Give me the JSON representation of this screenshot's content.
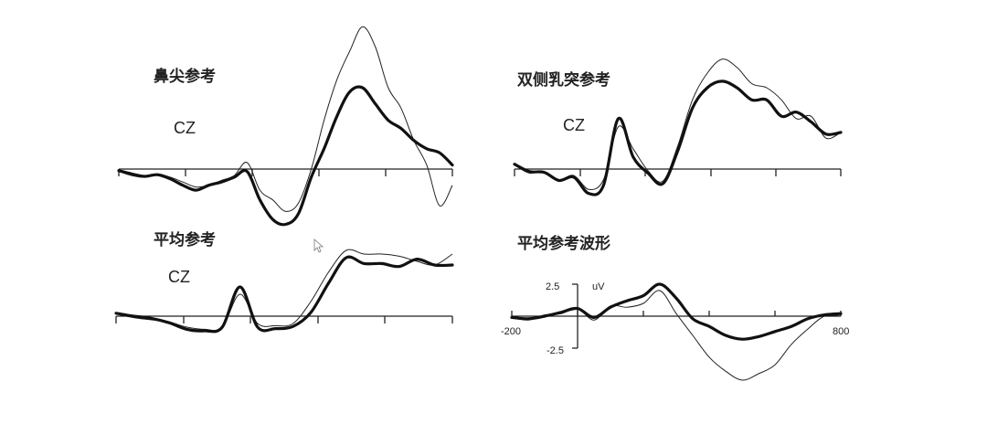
{
  "chart_data": [
    {
      "type": "line",
      "title": "鼻尖参考",
      "channel": "CZ",
      "series": [
        {
          "style": "thin",
          "values": [
            -0.3,
            -0.8,
            -1.0,
            -0.6,
            -1.0,
            -1.6,
            -2.2,
            -2.0,
            -1.4,
            -0.8,
            0.8,
            -2.6,
            -3.8,
            -5.2,
            -4.2,
            0.0,
            6.0,
            11.0,
            14.5,
            17.5,
            15.0,
            10.0,
            7.5,
            3.5,
            0.5,
            -4.5,
            -2.0
          ]
        },
        {
          "style": "thick",
          "values": [
            -0.2,
            -0.6,
            -0.9,
            -0.7,
            -1.2,
            -2.0,
            -2.6,
            -2.0,
            -1.6,
            -1.0,
            -0.3,
            -3.8,
            -6.2,
            -6.8,
            -5.5,
            -1.0,
            2.5,
            6.5,
            9.5,
            10.0,
            8.0,
            6.0,
            5.0,
            3.5,
            2.5,
            2.0,
            0.5
          ]
        }
      ]
    },
    {
      "type": "line",
      "title": "双侧乳突参考",
      "channel": "CZ",
      "series": [
        {
          "style": "thin",
          "values": [
            0.5,
            -0.5,
            -0.3,
            -1.3,
            -0.8,
            -2.5,
            -1.3,
            5.2,
            2.5,
            -0.2,
            -1.5,
            2.8,
            8.5,
            11.8,
            13.5,
            12.5,
            10.5,
            10.0,
            8.5,
            6.2,
            6.5,
            3.8,
            4.5
          ]
        },
        {
          "style": "thick",
          "values": [
            0.6,
            -0.3,
            -0.4,
            -1.4,
            -1.0,
            -3.0,
            -2.0,
            6.2,
            1.5,
            -0.5,
            -1.8,
            2.2,
            7.5,
            10.0,
            10.8,
            10.0,
            8.5,
            8.5,
            6.5,
            7.0,
            5.8,
            4.3,
            4.5
          ]
        }
      ]
    },
    {
      "type": "line",
      "title": "平均参考",
      "channel": "CZ",
      "series": [
        {
          "style": "thin",
          "values": [
            0.3,
            -0.2,
            -0.5,
            -0.8,
            -1.5,
            -1.8,
            -1.5,
            3.0,
            -1.0,
            -1.3,
            -1.0,
            2.0,
            6.0,
            9.0,
            8.5,
            8.5,
            8.2,
            7.5,
            7.0,
            8.5
          ]
        },
        {
          "style": "thick",
          "values": [
            0.4,
            0.0,
            -0.3,
            -0.9,
            -1.8,
            -2.0,
            -1.5,
            4.0,
            -1.5,
            -1.7,
            -1.4,
            0.5,
            4.5,
            8.0,
            7.2,
            7.2,
            6.8,
            7.8,
            7.0,
            7.0
          ]
        }
      ]
    },
    {
      "type": "line",
      "title": "平均参考波形",
      "y_unit": "uV",
      "y_ticks": [
        "2.5",
        "-2.5"
      ],
      "x_start_label": "-200",
      "x_end_label": "800",
      "ylim": [
        -5.5,
        3.5
      ],
      "xlim": [
        -200,
        800
      ],
      "series": [
        {
          "style": "thin",
          "values": [
            -0.1,
            -0.3,
            0.1,
            0.2,
            0.6,
            -0.3,
            0.8,
            0.7,
            1.0,
            2.0,
            0.2,
            -1.5,
            -3.2,
            -4.3,
            -5.0,
            -4.5,
            -3.8,
            -2.2,
            -1.0,
            0.0,
            0.0
          ]
        },
        {
          "style": "thick",
          "values": [
            -0.1,
            -0.2,
            0.0,
            0.3,
            0.6,
            -0.1,
            0.7,
            1.2,
            1.6,
            2.5,
            1.4,
            -0.2,
            -0.8,
            -1.5,
            -1.8,
            -1.6,
            -1.2,
            -0.8,
            -0.2,
            0.1,
            0.2
          ]
        }
      ]
    }
  ],
  "cursor_icon": "mouse-pointer-icon"
}
